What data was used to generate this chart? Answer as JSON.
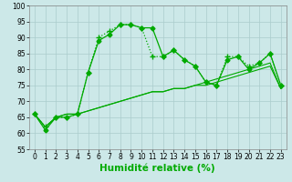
{
  "lines": [
    {
      "x": [
        0,
        1,
        2,
        3,
        4,
        5,
        6,
        7,
        8,
        9,
        10,
        11,
        12,
        13,
        14,
        15,
        16,
        17,
        18,
        19,
        20,
        21,
        22,
        23
      ],
      "y": [
        66,
        61,
        65,
        65,
        66,
        79,
        89,
        91,
        94,
        94,
        93,
        93,
        84,
        86,
        83,
        81,
        76,
        75,
        83,
        84,
        80,
        82,
        85,
        75
      ],
      "style": "-",
      "marker": "D",
      "color": "#00aa00",
      "linewidth": 0.9,
      "markersize": 2.5
    },
    {
      "x": [
        0,
        1,
        2,
        3,
        4,
        5,
        6,
        7,
        8,
        9,
        10,
        11,
        12,
        13,
        14,
        15,
        16,
        17,
        18,
        19,
        20,
        21,
        22,
        23
      ],
      "y": [
        66,
        62,
        65,
        65,
        66,
        79,
        90,
        92,
        94,
        94,
        93,
        84,
        84,
        86,
        83,
        81,
        76,
        75,
        84,
        84,
        81,
        82,
        85,
        75
      ],
      "style": ":",
      "marker": "+",
      "color": "#00aa00",
      "linewidth": 0.9,
      "markersize": 4
    },
    {
      "x": [
        0,
        1,
        2,
        3,
        4,
        5,
        6,
        7,
        8,
        9,
        10,
        11,
        12,
        13,
        14,
        15,
        16,
        17,
        18,
        19,
        20,
        21,
        22,
        23
      ],
      "y": [
        66,
        62,
        65,
        66,
        66,
        67,
        68,
        69,
        70,
        71,
        72,
        73,
        73,
        74,
        74,
        75,
        75,
        76,
        77,
        78,
        79,
        80,
        81,
        74
      ],
      "style": "-",
      "marker": null,
      "color": "#00aa00",
      "linewidth": 0.8,
      "markersize": 0
    },
    {
      "x": [
        0,
        1,
        2,
        3,
        4,
        5,
        6,
        7,
        8,
        9,
        10,
        11,
        12,
        13,
        14,
        15,
        16,
        17,
        18,
        19,
        20,
        21,
        22,
        23
      ],
      "y": [
        66,
        62,
        65,
        66,
        66,
        67,
        68,
        69,
        70,
        71,
        72,
        73,
        73,
        74,
        74,
        75,
        76,
        77,
        78,
        79,
        80,
        81,
        82,
        74
      ],
      "style": "-",
      "marker": null,
      "color": "#00aa00",
      "linewidth": 0.8,
      "markersize": 0
    }
  ],
  "xlabel": "Humidité relative (%)",
  "xlim": [
    -0.5,
    23.5
  ],
  "ylim": [
    55,
    100
  ],
  "yticks": [
    55,
    60,
    65,
    70,
    75,
    80,
    85,
    90,
    95,
    100
  ],
  "xticks": [
    0,
    1,
    2,
    3,
    4,
    5,
    6,
    7,
    8,
    9,
    10,
    11,
    12,
    13,
    14,
    15,
    16,
    17,
    18,
    19,
    20,
    21,
    22,
    23
  ],
  "background_color": "#cce8e8",
  "grid_color": "#aacccc",
  "line_color": "#00aa00",
  "tick_label_fontsize": 5.5,
  "xlabel_fontsize": 7.5,
  "xlabel_color": "#00aa00"
}
